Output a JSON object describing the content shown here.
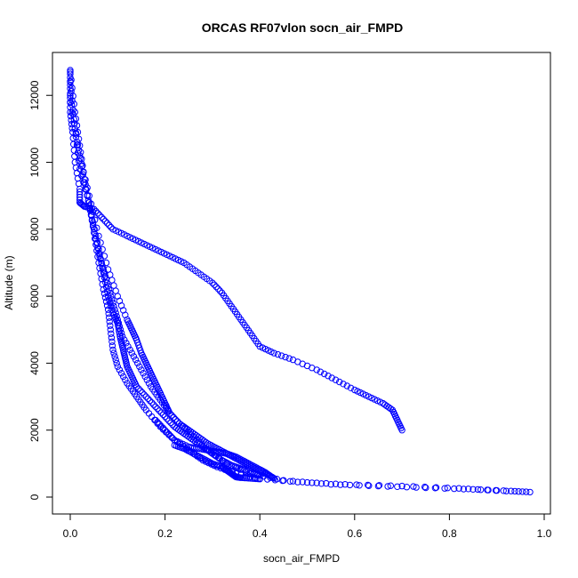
{
  "chart_data": {
    "type": "scatter",
    "title": "ORCAS RF07vlon socn_air_FMPD",
    "xlabel": "socn_air_FMPD",
    "ylabel": "Altitude (m)",
    "xlim": [
      0.0,
      1.0
    ],
    "ylim": [
      0,
      12750
    ],
    "xticks": [
      0.0,
      0.2,
      0.4,
      0.6,
      0.8,
      1.0
    ],
    "xtick_labels": [
      "0.0",
      "0.2",
      "0.4",
      "0.6",
      "0.8",
      "1.0"
    ],
    "yticks": [
      0,
      2000,
      4000,
      6000,
      8000,
      10000,
      12000
    ],
    "ytick_labels": [
      "0",
      "2000",
      "4000",
      "6000",
      "8000",
      "10000",
      "12000"
    ],
    "grid": false,
    "legend": "none",
    "marker": "open-circle",
    "color": "#0000ff",
    "series": [
      {
        "x": [
          0.0,
          0.0,
          0.0,
          0.005,
          0.01,
          0.02,
          0.02,
          0.03,
          0.05,
          0.07,
          0.09,
          0.12,
          0.15,
          0.18,
          0.21,
          0.24,
          0.27,
          0.3,
          0.32,
          0.34,
          0.36,
          0.38,
          0.4,
          0.43,
          0.47,
          0.52,
          0.56,
          0.6,
          0.63,
          0.66,
          0.68,
          0.69,
          0.7
        ],
        "y": [
          12750,
          12200,
          11500,
          10900,
          10000,
          9200,
          8800,
          8680,
          8600,
          8300,
          8000,
          7800,
          7600,
          7400,
          7200,
          7000,
          6700,
          6400,
          6100,
          5700,
          5300,
          4900,
          4500,
          4300,
          4100,
          3800,
          3500,
          3200,
          3000,
          2800,
          2600,
          2300,
          2000
        ]
      },
      {
        "x": [
          0.0,
          0.01,
          0.02,
          0.03,
          0.04,
          0.05,
          0.06,
          0.07,
          0.08,
          0.09,
          0.1,
          0.11,
          0.13,
          0.15,
          0.17,
          0.19,
          0.21,
          0.23,
          0.26,
          0.29,
          0.33,
          0.38,
          0.45,
          0.55,
          0.65,
          0.75,
          0.85,
          0.93,
          0.97
        ],
        "y": [
          12700,
          11500,
          10500,
          9500,
          8700,
          8000,
          7300,
          6800,
          6300,
          5800,
          5300,
          4800,
          4300,
          3800,
          3300,
          2900,
          2500,
          2200,
          1800,
          1400,
          1000,
          700,
          500,
          380,
          330,
          280,
          230,
          180,
          150
        ]
      },
      {
        "x": [
          0.0,
          0.01,
          0.02,
          0.04,
          0.05,
          0.06,
          0.07,
          0.08,
          0.085,
          0.09,
          0.1,
          0.12,
          0.14,
          0.16,
          0.19,
          0.22,
          0.25,
          0.28,
          0.31,
          0.35,
          0.4,
          0.48,
          0.58,
          0.7,
          0.82,
          0.92
        ],
        "y": [
          12400,
          11000,
          9800,
          8800,
          7900,
          7000,
          6200,
          5600,
          5000,
          4400,
          3900,
          3400,
          3000,
          2600,
          2100,
          1700,
          1400,
          1100,
          900,
          700,
          550,
          450,
          380,
          330,
          260,
          180
        ]
      },
      {
        "x": [
          0.0,
          0.015,
          0.03,
          0.045,
          0.06,
          0.07,
          0.08,
          0.09,
          0.1,
          0.105,
          0.11,
          0.115,
          0.12,
          0.13,
          0.14,
          0.16,
          0.18,
          0.2,
          0.22,
          0.24,
          0.26,
          0.28,
          0.3,
          0.32,
          0.34,
          0.36,
          0.38,
          0.4
        ],
        "y": [
          12000,
          10600,
          9400,
          8400,
          7400,
          6700,
          6000,
          5500,
          5200,
          4800,
          4500,
          4200,
          3900,
          3600,
          3300,
          3000,
          2700,
          2400,
          2100,
          1900,
          1700,
          1500,
          1300,
          1100,
          950,
          850,
          750,
          650
        ]
      },
      {
        "x": [
          0.0,
          0.02,
          0.04,
          0.06,
          0.08,
          0.1,
          0.12,
          0.13,
          0.14,
          0.15,
          0.16,
          0.17,
          0.18,
          0.19,
          0.2,
          0.21,
          0.23,
          0.25,
          0.27,
          0.29,
          0.31,
          0.33,
          0.35,
          0.37,
          0.39,
          0.41
        ],
        "y": [
          11800,
          10200,
          9000,
          7800,
          6800,
          6000,
          5300,
          5000,
          4700,
          4300,
          4000,
          3700,
          3400,
          3100,
          2800,
          2500,
          2200,
          2000,
          1800,
          1600,
          1450,
          1300,
          1150,
          1000,
          850,
          700
        ]
      },
      {
        "x": [
          0.22,
          0.24,
          0.26,
          0.28,
          0.3,
          0.32,
          0.33,
          0.34,
          0.345,
          0.35,
          0.36,
          0.38,
          0.4
        ],
        "y": [
          1550,
          1450,
          1300,
          1150,
          1000,
          900,
          800,
          700,
          650,
          600,
          580,
          560,
          540
        ]
      },
      {
        "x": [
          0.18,
          0.2,
          0.22,
          0.25,
          0.27,
          0.29,
          0.31,
          0.33,
          0.35,
          0.37,
          0.39,
          0.41,
          0.42,
          0.43
        ],
        "y": [
          2300,
          2000,
          1700,
          1500,
          1450,
          1400,
          1350,
          1300,
          1200,
          1050,
          900,
          750,
          650,
          560
        ]
      }
    ]
  }
}
